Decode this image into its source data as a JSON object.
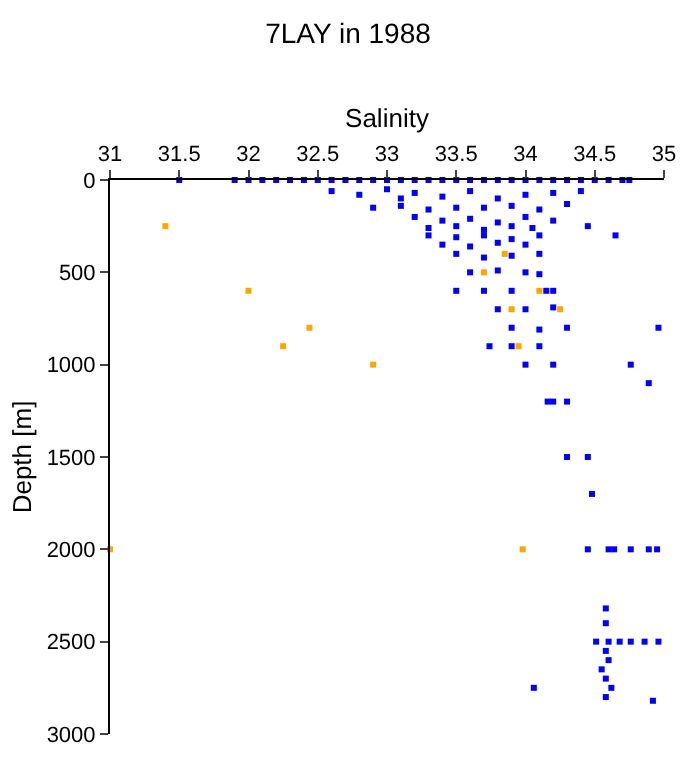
{
  "chart_data": {
    "type": "scatter",
    "title": "7LAY in 1988",
    "xlabel": "Salinity",
    "ylabel": "Depth [m]",
    "xlim": [
      31,
      35
    ],
    "xticks": [
      31,
      31.5,
      32,
      32.5,
      33,
      33.5,
      34,
      34.5,
      35
    ],
    "ylim": [
      3000,
      0
    ],
    "yticks": [
      0,
      500,
      1000,
      1500,
      2000,
      2500,
      3000
    ],
    "marker": "square",
    "series": [
      {
        "color": "#0000ff",
        "x": [
          31.5,
          31.9,
          32.0,
          32.1,
          32.2,
          32.3,
          32.4,
          32.5,
          32.6,
          32.7,
          32.8,
          32.9,
          33.0,
          33.1,
          33.2,
          33.3,
          33.4,
          33.5,
          33.6,
          33.7,
          33.8,
          33.9,
          34.0,
          34.1,
          34.2,
          34.3,
          34.4,
          34.5,
          34.6,
          34.7,
          34.75,
          32.6,
          32.8,
          33.0,
          33.1,
          33.2,
          33.4,
          33.6,
          33.8,
          34.0,
          34.2,
          34.4,
          32.9,
          33.1,
          33.3,
          33.5,
          33.7,
          33.9,
          34.1,
          34.3,
          33.2,
          33.4,
          33.6,
          33.8,
          34.0,
          34.2,
          33.3,
          33.5,
          33.7,
          33.9,
          34.05,
          33.3,
          33.5,
          33.7,
          33.9,
          34.1,
          33.4,
          33.6,
          33.8,
          34.0,
          33.5,
          33.7,
          33.9,
          34.1,
          33.6,
          33.8,
          34.0,
          34.1,
          33.5,
          33.7,
          33.9,
          34.15,
          34.2,
          33.8,
          34.0,
          34.2,
          33.9,
          34.1,
          34.3,
          33.9,
          34.1,
          34.0,
          34.2,
          34.2,
          34.3,
          34.3,
          34.45,
          34.45,
          34.6,
          34.64,
          34.76,
          34.89,
          34.95,
          34.51,
          34.6,
          34.68,
          34.76,
          34.86,
          34.96,
          34.58,
          34.58,
          34.58,
          34.6,
          34.55,
          34.58,
          34.62,
          34.58,
          34.45,
          34.65,
          34.96,
          33.74,
          34.76,
          34.89,
          34.16,
          34.48,
          34.06,
          34.92
        ],
        "values": [
          0,
          0,
          0,
          0,
          0,
          0,
          0,
          0,
          0,
          0,
          0,
          0,
          0,
          0,
          0,
          0,
          0,
          0,
          0,
          0,
          0,
          0,
          0,
          0,
          0,
          0,
          0,
          0,
          0,
          0,
          0,
          60,
          80,
          50,
          100,
          70,
          90,
          60,
          100,
          80,
          70,
          60,
          150,
          140,
          160,
          150,
          150,
          140,
          160,
          130,
          200,
          220,
          210,
          230,
          200,
          220,
          260,
          250,
          270,
          250,
          260,
          300,
          310,
          300,
          320,
          300,
          350,
          360,
          340,
          350,
          400,
          420,
          410,
          400,
          500,
          490,
          500,
          510,
          600,
          600,
          600,
          600,
          600,
          700,
          700,
          690,
          800,
          810,
          800,
          900,
          900,
          1000,
          1000,
          1200,
          1200,
          1500,
          1500,
          2000,
          2000,
          2000,
          2000,
          2000,
          2000,
          2500,
          2500,
          2500,
          2500,
          2500,
          2500,
          2320,
          2400,
          2550,
          2600,
          2650,
          2700,
          2750,
          2800,
          250,
          300,
          800,
          900,
          1000,
          1100,
          1200,
          1700,
          2750,
          2820
        ]
      },
      {
        "color": "#ffa500",
        "x": [
          31.4,
          32.0,
          32.44,
          32.25,
          32.9,
          31.0,
          33.98,
          33.85,
          33.7,
          34.1,
          33.9,
          34.25,
          33.95
        ],
        "values": [
          250,
          600,
          800,
          900,
          1000,
          2000,
          2000,
          400,
          500,
          600,
          700,
          700,
          900
        ]
      }
    ]
  }
}
